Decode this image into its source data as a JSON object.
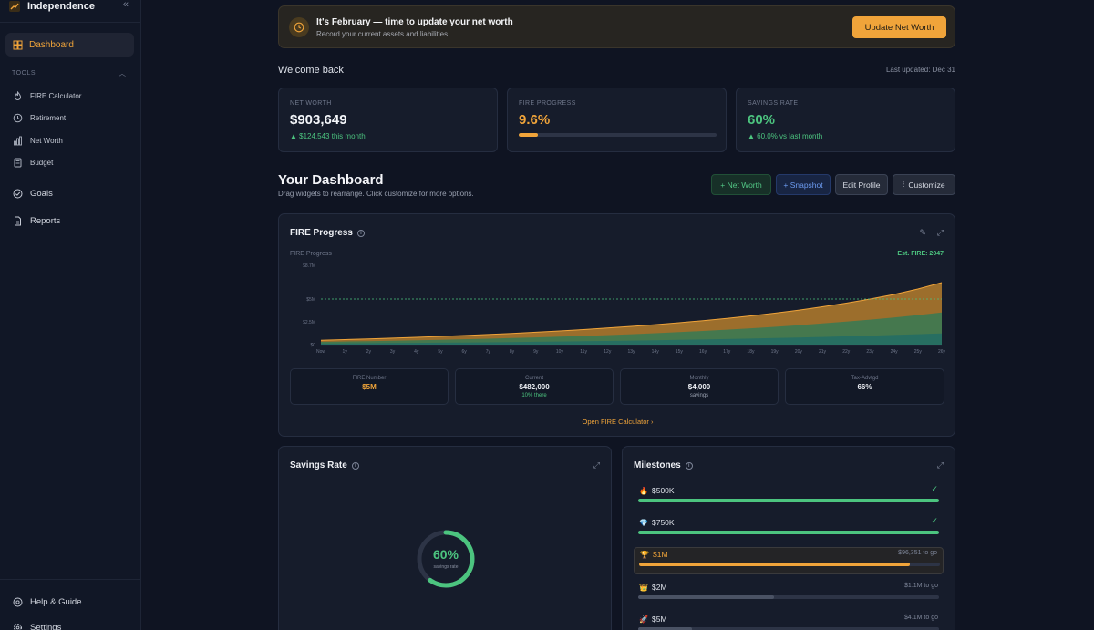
{
  "sidebar": {
    "brand": "Independence",
    "dashboard": "Dashboard",
    "tools_label": "TOOLS",
    "tools": [
      "FIRE Calculator",
      "Retirement",
      "Net Worth",
      "Budget"
    ],
    "goals": "Goals",
    "reports": "Reports",
    "help": "Help & Guide",
    "settings": "Settings"
  },
  "banner": {
    "title": "It's February — time to update your net worth",
    "subtitle": "Record your current assets and liabilities.",
    "button": "Update Net Worth"
  },
  "welcome": "Welcome back",
  "last_updated": "Last updated: Dec 31",
  "stats": {
    "net_worth": {
      "label": "NET WORTH",
      "value": "$903,649",
      "sub": "▲ $124,543 this month"
    },
    "fire_progress": {
      "label": "FIRE PROGRESS",
      "value": "9.6%",
      "fraction": 0.096
    },
    "savings_rate": {
      "label": "SAVINGS RATE",
      "value": "60%",
      "sub": "▲ 60.0% vs last month"
    }
  },
  "dashboard": {
    "title": "Your Dashboard",
    "subtitle": "Drag widgets to rearrange. Click customize for more options.",
    "buttons": {
      "net_worth": "+ Net Worth",
      "snapshot": "+ Snapshot",
      "edit_profile": "Edit Profile",
      "customize": "Customize"
    }
  },
  "fire_card": {
    "title": "FIRE Progress",
    "chart_label": "FIRE Progress",
    "est": "Est. FIRE: 2047",
    "minis": [
      {
        "label": "FIRE Number",
        "value": "$5M",
        "sub": "",
        "color": "#f0a43a"
      },
      {
        "label": "Current",
        "value": "$482,000",
        "sub": "10% there",
        "color": "#eef0f5",
        "sub_color": "#4cc47f"
      },
      {
        "label": "Monthly",
        "value": "$4,000",
        "sub": "savings",
        "color": "#eef0f5",
        "sub_color": "#9aa1b1"
      },
      {
        "label": "Tax-Advtgd",
        "value": "66%",
        "sub": "",
        "color": "#eef0f5"
      }
    ],
    "open_link": "Open FIRE Calculator ›"
  },
  "chart_data": {
    "type": "area",
    "x": [
      "Now",
      "1y",
      "2y",
      "3y",
      "4y",
      "5y",
      "6y",
      "7y",
      "8y",
      "9y",
      "10y",
      "11y",
      "12y",
      "13y",
      "14y",
      "15y",
      "16y",
      "17y",
      "18y",
      "19y",
      "20y",
      "21y",
      "22y",
      "23y",
      "24y",
      "25y",
      "26y"
    ],
    "y_ticks": [
      "$0",
      "$2.5M",
      "$5M",
      "$8.7M"
    ],
    "ylim": [
      0,
      8.7
    ],
    "target_line": 5,
    "series": [
      {
        "values": [
          0.48,
          0.55,
          0.63,
          0.71,
          0.8,
          0.9,
          1.0,
          1.11,
          1.23,
          1.36,
          1.5,
          1.65,
          1.82,
          2.0,
          2.19,
          2.4,
          2.63,
          2.88,
          3.15,
          3.45,
          3.78,
          4.15,
          4.55,
          5.0,
          5.5,
          6.1,
          6.8
        ],
        "color": "#c98a2e"
      },
      {
        "values": [
          0.3,
          0.34,
          0.38,
          0.43,
          0.48,
          0.53,
          0.59,
          0.65,
          0.72,
          0.79,
          0.87,
          0.95,
          1.04,
          1.14,
          1.25,
          1.37,
          1.5,
          1.64,
          1.79,
          1.95,
          2.13,
          2.32,
          2.52,
          2.74,
          2.98,
          3.24,
          3.52
        ],
        "color": "#2f7a57"
      },
      {
        "values": [
          0.12,
          0.13,
          0.15,
          0.17,
          0.19,
          0.21,
          0.23,
          0.25,
          0.28,
          0.31,
          0.34,
          0.37,
          0.4,
          0.44,
          0.48,
          0.52,
          0.56,
          0.61,
          0.66,
          0.72,
          0.78,
          0.84,
          0.91,
          0.98,
          1.06,
          1.14,
          1.23
        ],
        "color": "#1f6b66"
      }
    ]
  },
  "savings_card": {
    "title": "Savings Rate",
    "value": "60%",
    "sub": "savings rate",
    "fraction": 0.6
  },
  "milestones_card": {
    "title": "Milestones",
    "items": [
      {
        "icon": "flame-icon",
        "glyph": "🔥",
        "label": "$500K",
        "right": "",
        "done": true,
        "fraction": 1.0,
        "color": "#4cc47f"
      },
      {
        "icon": "diamond-icon",
        "glyph": "💎",
        "label": "$750K",
        "right": "",
        "done": true,
        "fraction": 1.0,
        "color": "#4cc47f"
      },
      {
        "icon": "trophy-icon",
        "glyph": "🏆",
        "label": "$1M",
        "right": "$96,351 to go",
        "done": false,
        "fraction": 0.9,
        "color": "#f0a43a",
        "highlight": true
      },
      {
        "icon": "crown-icon",
        "glyph": "👑",
        "label": "$2M",
        "right": "$1.1M to go",
        "done": false,
        "fraction": 0.45,
        "color": "#4a5264"
      },
      {
        "icon": "rocket-icon",
        "glyph": "🚀",
        "label": "$5M",
        "right": "$4.1M to go",
        "done": false,
        "fraction": 0.18,
        "color": "#4a5264"
      }
    ]
  },
  "colors": {
    "accent": "#f0a43a",
    "positive": "#4cc47f",
    "bg": "#0f1422",
    "card": "#161c2b"
  }
}
